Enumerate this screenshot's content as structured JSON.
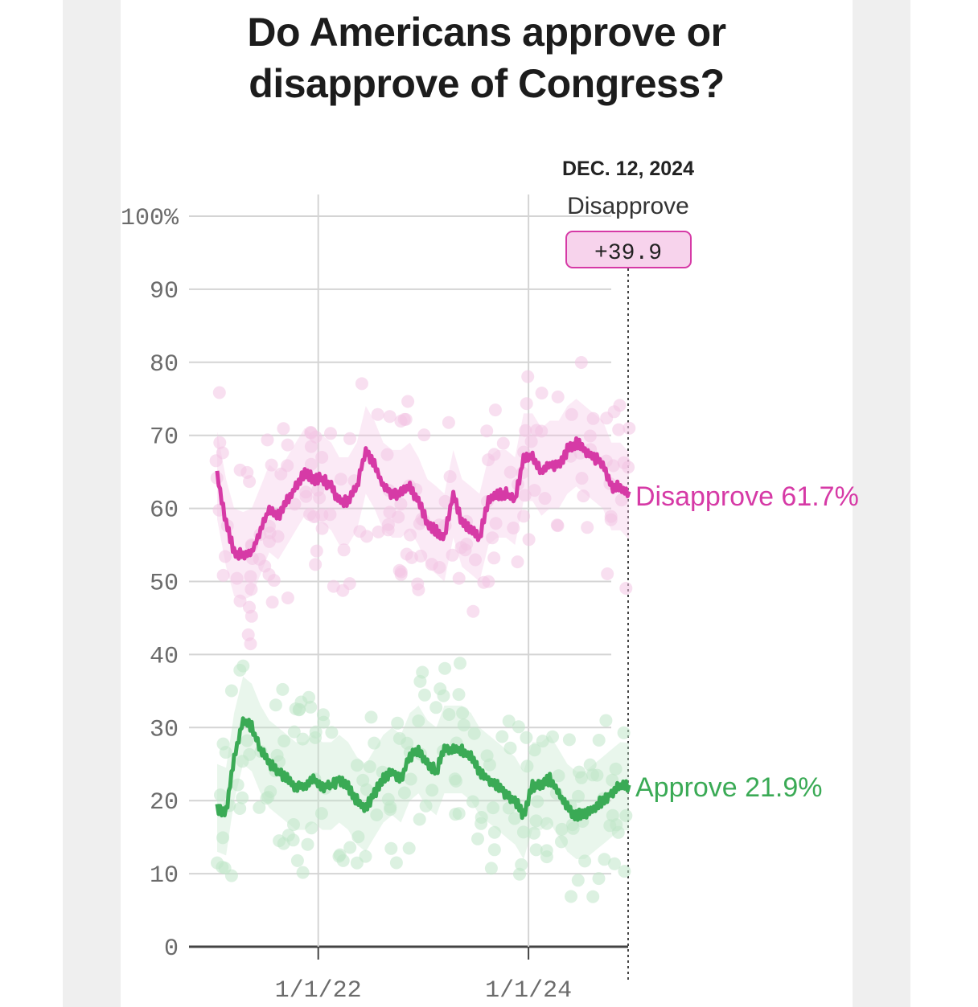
{
  "title_line1": "Do Americans approve or",
  "title_line2": "disapprove of Congress?",
  "colors": {
    "disapprove": "#d63aa6",
    "disapprove_light": "#f3c4e4",
    "approve": "#3aaa55",
    "approve_light": "#bfe5c8"
  },
  "annotation": {
    "date": "DEC. 12, 2024",
    "label": "Disapprove",
    "margin": "+39.9"
  },
  "chart_data": {
    "type": "line",
    "x_start": "2021-01",
    "x_end": "2024-12-12",
    "x_ticks": [
      "1/1/22",
      "1/1/24"
    ],
    "y_ticks": [
      "0",
      "10",
      "20",
      "30",
      "40",
      "50",
      "60",
      "70",
      "80",
      "90",
      "100%"
    ],
    "ylim": [
      0,
      100
    ],
    "series": [
      {
        "name": "Disapprove",
        "end_label": "Disapprove 61.7%",
        "x": [
          "2021-01",
          "2021-02",
          "2021-03",
          "2021-04",
          "2021-05",
          "2021-06",
          "2021-07",
          "2021-08",
          "2021-09",
          "2021-10",
          "2021-11",
          "2021-12",
          "2022-01",
          "2022-02",
          "2022-03",
          "2022-04",
          "2022-05",
          "2022-06",
          "2022-07",
          "2022-08",
          "2022-09",
          "2022-10",
          "2022-11",
          "2022-12",
          "2023-01",
          "2023-02",
          "2023-03",
          "2023-04",
          "2023-05",
          "2023-06",
          "2023-07",
          "2023-08",
          "2023-09",
          "2023-10",
          "2023-11",
          "2023-12",
          "2024-01",
          "2024-02",
          "2024-03",
          "2024-04",
          "2024-05",
          "2024-06",
          "2024-07",
          "2024-08",
          "2024-09",
          "2024-10",
          "2024-11",
          "2024-12"
        ],
        "values": [
          64.5,
          58,
          54,
          53.5,
          54,
          57,
          60,
          59,
          61,
          63,
          65,
          64,
          64,
          63,
          61,
          61,
          63,
          68,
          66,
          63,
          62,
          62,
          63,
          61,
          58,
          57,
          56,
          62,
          58,
          57,
          56,
          61,
          62,
          62,
          61,
          67,
          67,
          65,
          66,
          66,
          68,
          69,
          68,
          67,
          66,
          63,
          63,
          61.7
        ]
      },
      {
        "name": "Approve",
        "end_label": "Approve 21.9%",
        "x": [
          "2021-01",
          "2021-02",
          "2021-03",
          "2021-04",
          "2021-05",
          "2021-06",
          "2021-07",
          "2021-08",
          "2021-09",
          "2021-10",
          "2021-11",
          "2021-12",
          "2022-01",
          "2022-02",
          "2022-03",
          "2022-04",
          "2022-05",
          "2022-06",
          "2022-07",
          "2022-08",
          "2022-09",
          "2022-10",
          "2022-11",
          "2022-12",
          "2023-01",
          "2023-02",
          "2023-03",
          "2023-04",
          "2023-05",
          "2023-06",
          "2023-07",
          "2023-08",
          "2023-09",
          "2023-10",
          "2023-11",
          "2023-12",
          "2024-01",
          "2024-02",
          "2024-03",
          "2024-04",
          "2024-05",
          "2024-06",
          "2024-07",
          "2024-08",
          "2024-09",
          "2024-10",
          "2024-11",
          "2024-12"
        ],
        "values": [
          19,
          18.5,
          26,
          31,
          30,
          27,
          25,
          24,
          23,
          22,
          22,
          23,
          22,
          22,
          23,
          22,
          20,
          19,
          21,
          23,
          24,
          23,
          26,
          27,
          25,
          24,
          27,
          27,
          27,
          26,
          24,
          23,
          22,
          21,
          20,
          18,
          22,
          22,
          23,
          21,
          19,
          18,
          18,
          19,
          20,
          21,
          22,
          21.9
        ]
      }
    ]
  }
}
